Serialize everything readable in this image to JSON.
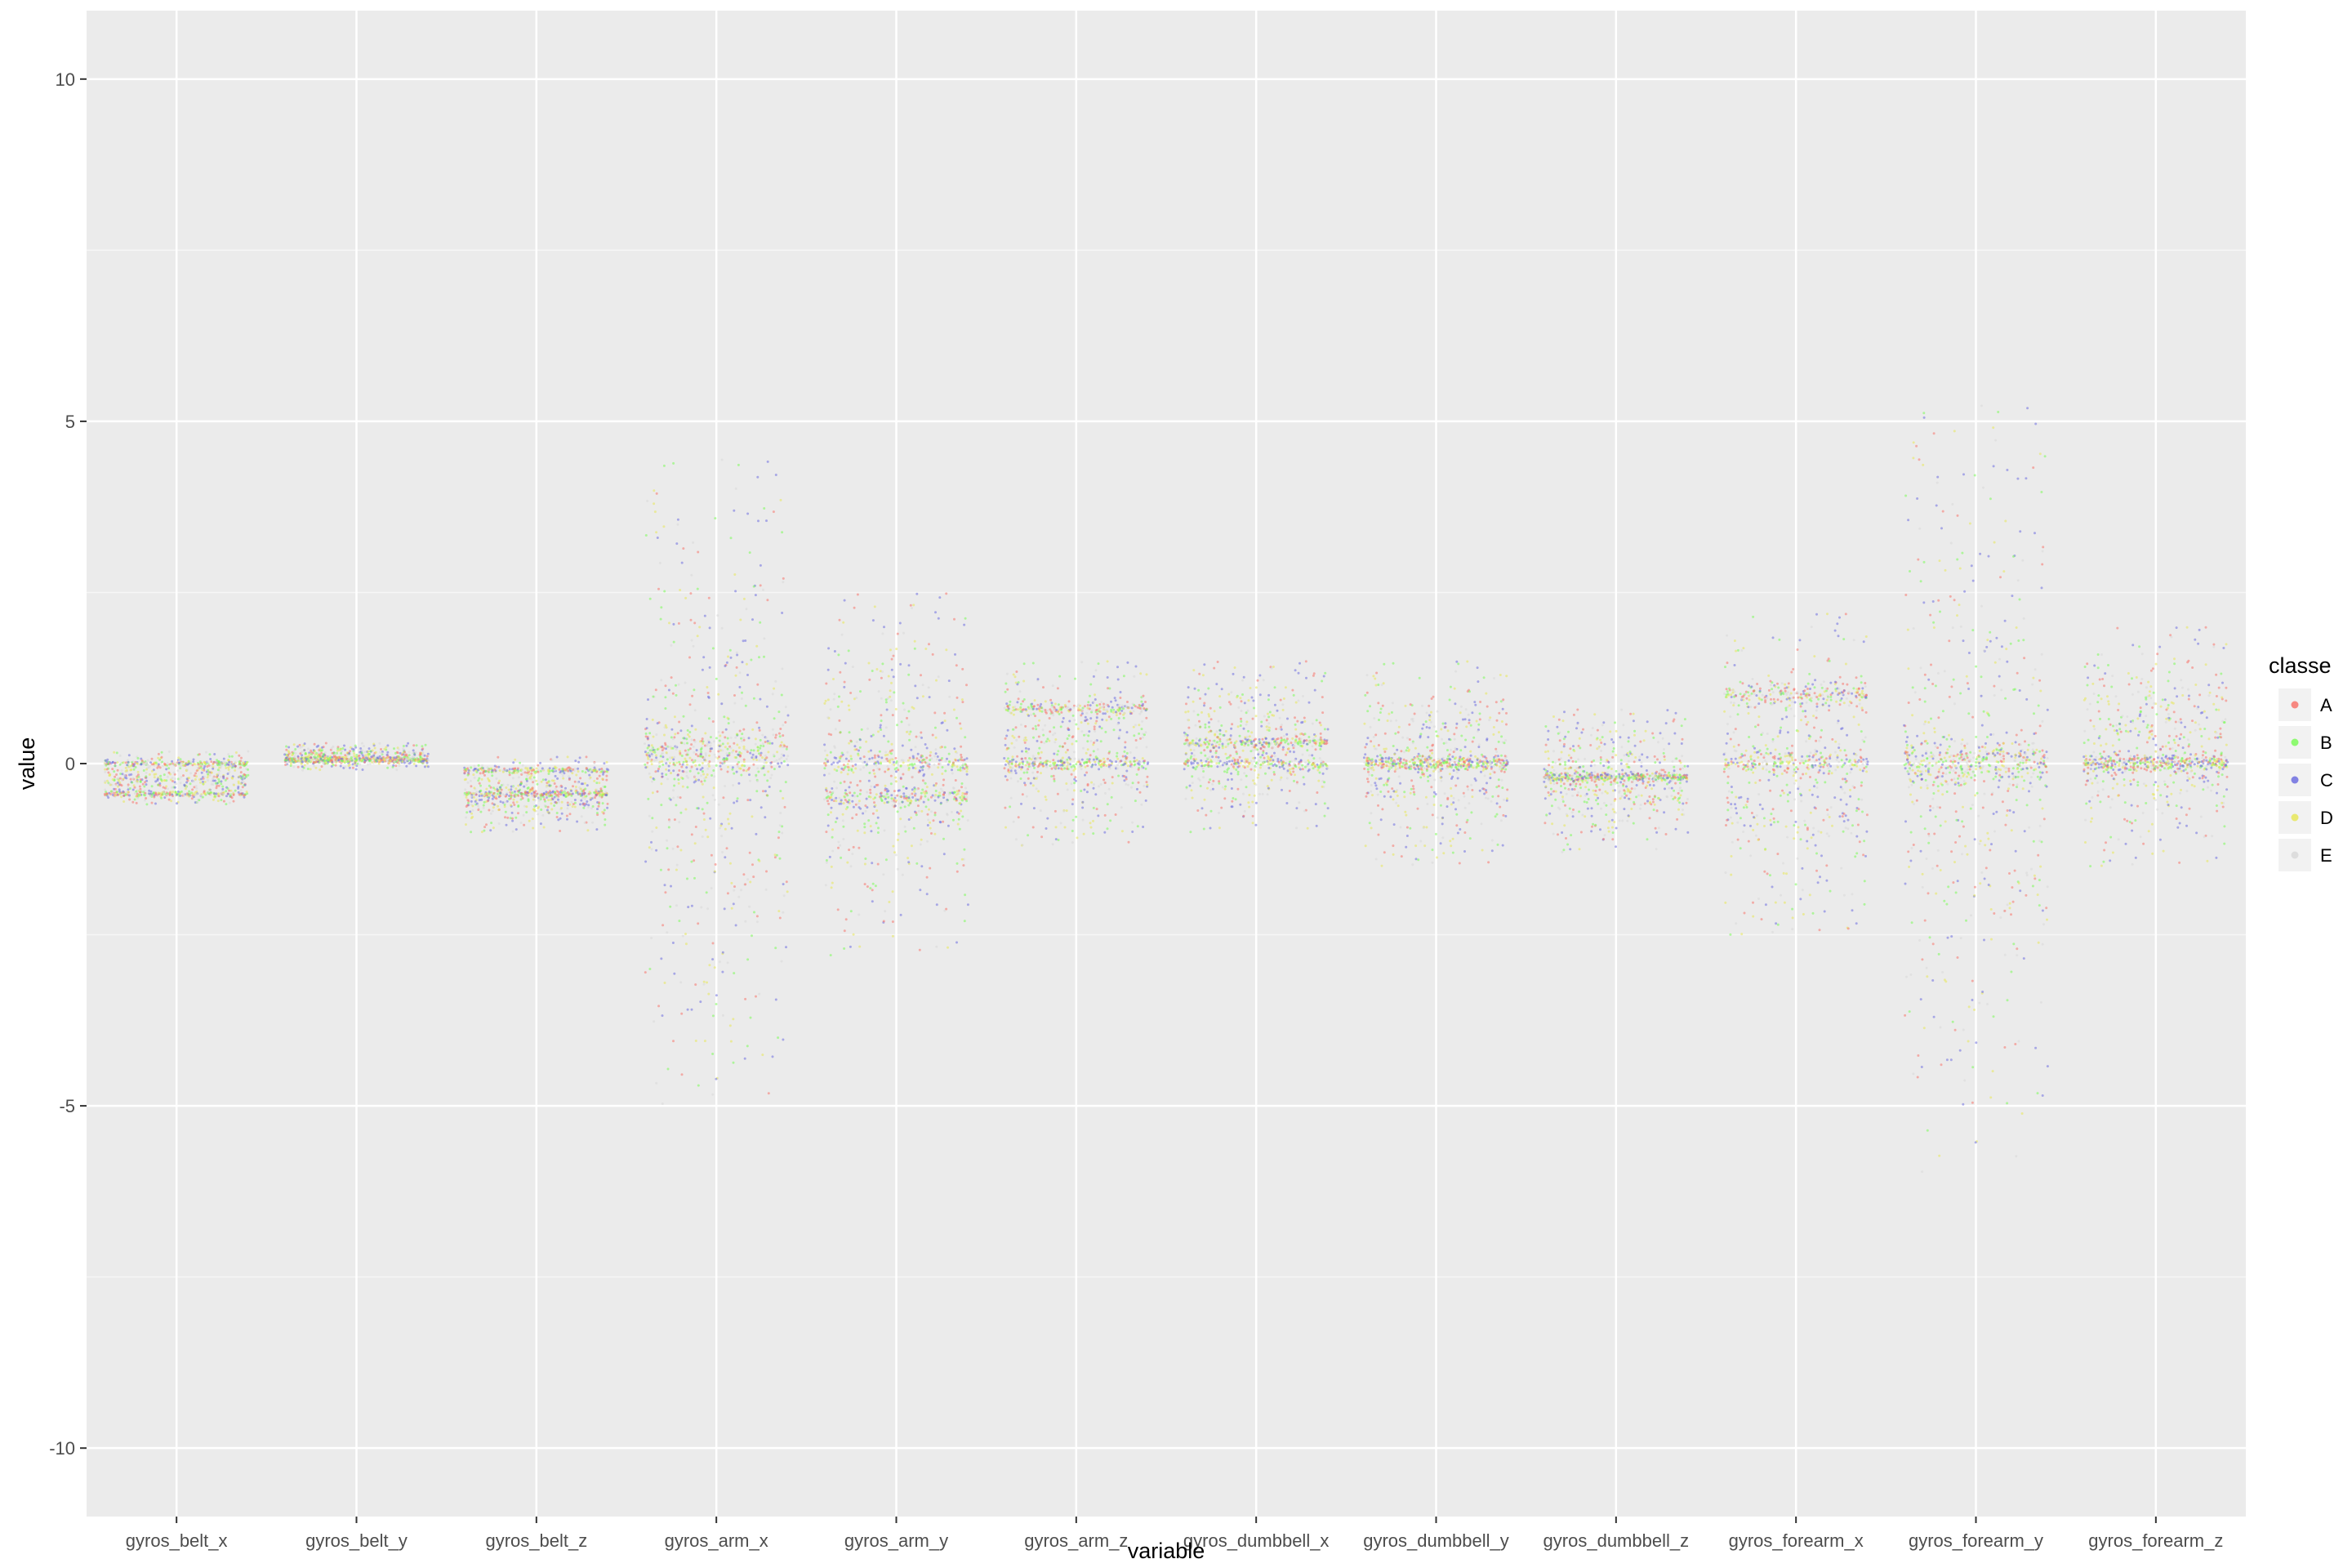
{
  "chart_data": {
    "type": "scatter",
    "subtype": "jitter",
    "title": "",
    "xlabel": "variable",
    "ylabel": "value",
    "ylim": [
      -11,
      11
    ],
    "yticks": [
      10,
      5,
      0,
      -5,
      -10
    ],
    "ytick_labels": [
      "10",
      "5",
      "0",
      "-5",
      "-10"
    ],
    "grid": true,
    "legend": {
      "title": "classe",
      "placement": "right",
      "entries": [
        "A",
        "B",
        "C",
        "D",
        "E"
      ]
    },
    "categories": [
      "gyros_belt_x",
      "gyros_belt_y",
      "gyros_belt_z",
      "gyros_arm_x",
      "gyros_arm_y",
      "gyros_arm_z",
      "gyros_dumbbell_x",
      "gyros_dumbbell_y",
      "gyros_dumbbell_z",
      "gyros_forearm_x",
      "gyros_forearm_y",
      "gyros_forearm_z"
    ],
    "colors": {
      "A": "#F8766D",
      "B": "#7CFC5A",
      "C": "#6F6FE0",
      "D": "#E8E85A",
      "E": "#D9D9D9"
    },
    "approx_ranges": [
      {
        "variable": "gyros_belt_x",
        "min": -0.6,
        "max": 0.2,
        "bands": [
          0,
          -0.45
        ]
      },
      {
        "variable": "gyros_belt_y",
        "min": -0.1,
        "max": 0.3,
        "bands": [
          0.05
        ]
      },
      {
        "variable": "gyros_belt_z",
        "min": -1.0,
        "max": 0.1,
        "bands": [
          -0.1,
          -0.45
        ]
      },
      {
        "variable": "gyros_arm_x",
        "min": -5.0,
        "max": 4.5,
        "bands": [
          0,
          0.25
        ]
      },
      {
        "variable": "gyros_arm_y",
        "min": -2.8,
        "max": 2.5,
        "bands": [
          0,
          -0.5
        ]
      },
      {
        "variable": "gyros_arm_z",
        "min": -1.2,
        "max": 1.5,
        "bands": [
          0,
          0.8
        ]
      },
      {
        "variable": "gyros_dumbbell_x",
        "min": -1.0,
        "max": 1.5,
        "bands": [
          0,
          0.3
        ]
      },
      {
        "variable": "gyros_dumbbell_y",
        "min": -1.5,
        "max": 1.5,
        "bands": [
          0
        ]
      },
      {
        "variable": "gyros_dumbbell_z",
        "min": -1.3,
        "max": 0.8,
        "bands": [
          -0.2
        ]
      },
      {
        "variable": "gyros_forearm_x",
        "min": -2.5,
        "max": 2.2,
        "bands": [
          0,
          1.0
        ]
      },
      {
        "variable": "gyros_forearm_y",
        "min": -6.0,
        "max": 5.3,
        "bands": [
          0
        ]
      },
      {
        "variable": "gyros_forearm_z",
        "min": -1.5,
        "max": 2.0,
        "bands": [
          0
        ]
      }
    ]
  }
}
